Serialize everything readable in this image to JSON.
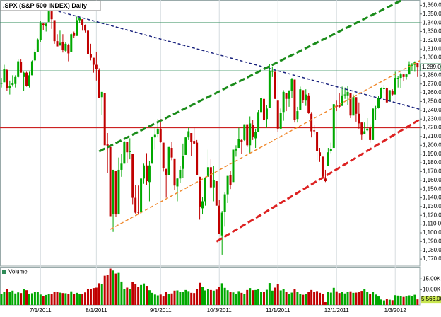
{
  "chart_data": {
    "type": "candlestick",
    "title": ".SPX (S&P 500 INDEX) Daily",
    "up_color": "#00a800",
    "down_color": "#c00000",
    "candles": [
      [
        1271,
        1277,
        1266,
        1271
      ],
      [
        1272,
        1292,
        1272,
        1287
      ],
      [
        1286,
        1287,
        1262,
        1265
      ],
      [
        1265,
        1274,
        1258,
        1268
      ],
      [
        1269,
        1280,
        1267,
        1271
      ],
      [
        1270,
        1280,
        1266,
        1278
      ],
      [
        1278,
        1298,
        1277,
        1296
      ],
      [
        1295,
        1298,
        1283,
        1283
      ],
      [
        1278,
        1284,
        1262,
        1283
      ],
      [
        1283,
        1284,
        1267,
        1268
      ],
      [
        1268,
        1284,
        1266,
        1280
      ],
      [
        1280,
        1297,
        1280,
        1296
      ],
      [
        1297,
        1310,
        1295,
        1307
      ],
      [
        1307,
        1322,
        1307,
        1321
      ],
      [
        1320,
        1342,
        1318,
        1340
      ],
      [
        1339,
        1340,
        1332,
        1337
      ],
      [
        1336,
        1340,
        1330,
        1339
      ],
      [
        1341,
        1357,
        1341,
        1353
      ],
      [
        1353,
        1353,
        1333,
        1344
      ],
      [
        1343,
        1343,
        1316,
        1319
      ],
      [
        1319,
        1327,
        1313,
        1313
      ],
      [
        1314,
        1331,
        1314,
        1317
      ],
      [
        1318,
        1327,
        1306,
        1309
      ],
      [
        1308,
        1318,
        1307,
        1316
      ],
      [
        1315,
        1316,
        1296,
        1305
      ],
      [
        1307,
        1328,
        1307,
        1327
      ],
      [
        1328,
        1330,
        1323,
        1325
      ],
      [
        1325,
        1347,
        1325,
        1343
      ],
      [
        1343,
        1347,
        1340,
        1346
      ],
      [
        1344,
        1344,
        1331,
        1337
      ],
      [
        1337,
        1338,
        1329,
        1331
      ],
      [
        1331,
        1331,
        1303,
        1304
      ],
      [
        1304,
        1316,
        1297,
        1300
      ],
      [
        1300,
        1300,
        1283,
        1292
      ],
      [
        1292,
        1307,
        1274,
        1287
      ],
      [
        1286,
        1288,
        1254,
        1254
      ],
      [
        1255,
        1261,
        1235,
        1261
      ],
      [
        1260,
        1260,
        1200,
        1200
      ],
      [
        1201,
        1214,
        1168,
        1199
      ],
      [
        1198,
        1198,
        1119,
        1119
      ],
      [
        1121,
        1172,
        1101,
        1172
      ],
      [
        1171,
        1171,
        1118,
        1121
      ],
      [
        1121,
        1186,
        1121,
        1172
      ],
      [
        1172,
        1190,
        1164,
        1179
      ],
      [
        1179,
        1205,
        1179,
        1204
      ],
      [
        1204,
        1204,
        1180,
        1192
      ],
      [
        1193,
        1208,
        1184,
        1193
      ],
      [
        1190,
        1190,
        1132,
        1140
      ],
      [
        1140,
        1155,
        1122,
        1123
      ],
      [
        1124,
        1154,
        1121,
        1123
      ],
      [
        1124,
        1162,
        1121,
        1162
      ],
      [
        1162,
        1179,
        1156,
        1177
      ],
      [
        1177,
        1191,
        1155,
        1159
      ],
      [
        1158,
        1182,
        1136,
        1177
      ],
      [
        1179,
        1210,
        1179,
        1210
      ],
      [
        1209,
        1220,
        1195,
        1212
      ],
      [
        1213,
        1230,
        1209,
        1219
      ],
      [
        1219,
        1230,
        1203,
        1204
      ],
      [
        1203,
        1203,
        1170,
        1174
      ],
      [
        1173,
        1173,
        1140,
        1166
      ],
      [
        1166,
        1198,
        1166,
        1198
      ],
      [
        1197,
        1204,
        1183,
        1186
      ],
      [
        1185,
        1185,
        1149,
        1154
      ],
      [
        1153,
        1163,
        1136,
        1162
      ],
      [
        1162,
        1176,
        1157,
        1172
      ],
      [
        1173,
        1202,
        1163,
        1188
      ],
      [
        1189,
        1209,
        1189,
        1209
      ],
      [
        1209,
        1220,
        1206,
        1216
      ],
      [
        1214,
        1214,
        1188,
        1204
      ],
      [
        1205,
        1220,
        1201,
        1202
      ],
      [
        1203,
        1206,
        1166,
        1166
      ],
      [
        1164,
        1164,
        1115,
        1130
      ],
      [
        1128,
        1141,
        1121,
        1136
      ],
      [
        1136,
        1164,
        1131,
        1163
      ],
      [
        1164,
        1195,
        1164,
        1175
      ],
      [
        1175,
        1184,
        1150,
        1152
      ],
      [
        1152,
        1176,
        1136,
        1160
      ],
      [
        1159,
        1159,
        1131,
        1131
      ],
      [
        1131,
        1138,
        1099,
        1099
      ],
      [
        1097,
        1125,
        1075,
        1123
      ],
      [
        1124,
        1146,
        1107,
        1144
      ],
      [
        1144,
        1165,
        1134,
        1165
      ],
      [
        1166,
        1171,
        1150,
        1155
      ],
      [
        1158,
        1195,
        1158,
        1195
      ],
      [
        1194,
        1200,
        1187,
        1196
      ],
      [
        1197,
        1220,
        1197,
        1207
      ],
      [
        1206,
        1207,
        1190,
        1204
      ],
      [
        1206,
        1224,
        1205,
        1224
      ],
      [
        1224,
        1224,
        1198,
        1200
      ],
      [
        1200,
        1233,
        1191,
        1225
      ],
      [
        1223,
        1229,
        1206,
        1210
      ],
      [
        1208,
        1219,
        1197,
        1215
      ],
      [
        1215,
        1240,
        1215,
        1238
      ],
      [
        1238,
        1256,
        1238,
        1254
      ],
      [
        1253,
        1254,
        1226,
        1229
      ],
      [
        1230,
        1246,
        1220,
        1242
      ],
      [
        1243,
        1293,
        1243,
        1285
      ],
      [
        1284,
        1290,
        1278,
        1285
      ],
      [
        1284,
        1284,
        1253,
        1253
      ],
      [
        1251,
        1251,
        1215,
        1219
      ],
      [
        1219,
        1242,
        1219,
        1237
      ],
      [
        1238,
        1263,
        1228,
        1261
      ],
      [
        1260,
        1260,
        1239,
        1253
      ],
      [
        1253,
        1263,
        1244,
        1262
      ],
      [
        1262,
        1277,
        1254,
        1276
      ],
      [
        1275,
        1275,
        1226,
        1229
      ],
      [
        1230,
        1244,
        1226,
        1239
      ],
      [
        1240,
        1267,
        1240,
        1264
      ],
      [
        1263,
        1263,
        1248,
        1252
      ],
      [
        1251,
        1264,
        1245,
        1258
      ],
      [
        1257,
        1260,
        1236,
        1237
      ],
      [
        1236,
        1238,
        1209,
        1216
      ],
      [
        1217,
        1223,
        1212,
        1216
      ],
      [
        1215,
        1215,
        1183,
        1193
      ],
      [
        1192,
        1197,
        1181,
        1188
      ],
      [
        1187,
        1187,
        1162,
        1162
      ],
      [
        1162,
        1172,
        1158,
        1159
      ],
      [
        1176,
        1197,
        1176,
        1192
      ],
      [
        1193,
        1203,
        1191,
        1196
      ],
      [
        1197,
        1247,
        1197,
        1247
      ],
      [
        1246,
        1251,
        1239,
        1244
      ],
      [
        1246,
        1260,
        1243,
        1244
      ],
      [
        1245,
        1267,
        1245,
        1257
      ],
      [
        1258,
        1266,
        1253,
        1258
      ],
      [
        1257,
        1268,
        1246,
        1261
      ],
      [
        1260,
        1260,
        1231,
        1234
      ],
      [
        1234,
        1258,
        1234,
        1255
      ],
      [
        1255,
        1255,
        1227,
        1236
      ],
      [
        1236,
        1249,
        1219,
        1225
      ],
      [
        1226,
        1226,
        1206,
        1212
      ],
      [
        1213,
        1226,
        1213,
        1216
      ],
      [
        1217,
        1231,
        1216,
        1219
      ],
      [
        1220,
        1224,
        1203,
        1206
      ],
      [
        1206,
        1242,
        1206,
        1242
      ],
      [
        1242,
        1245,
        1229,
        1243
      ],
      [
        1243,
        1256,
        1242,
        1254
      ],
      [
        1254,
        1266,
        1254,
        1265
      ],
      [
        1265,
        1269,
        1259,
        1265
      ],
      [
        1265,
        1266,
        1248,
        1249
      ],
      [
        1250,
        1263,
        1250,
        1263
      ],
      [
        1262,
        1264,
        1257,
        1258
      ],
      [
        1258,
        1284,
        1258,
        1277
      ],
      [
        1277,
        1279,
        1266,
        1277
      ],
      [
        1277,
        1283,
        1265,
        1281
      ],
      [
        1281,
        1281,
        1273,
        1278
      ],
      [
        1278,
        1282,
        1275,
        1281
      ],
      [
        1281,
        1296,
        1281,
        1292
      ],
      [
        1291,
        1294,
        1285,
        1292
      ],
      [
        1292,
        1296,
        1284,
        1295
      ],
      [
        1294,
        1294,
        1278,
        1289.09
      ]
    ],
    "close_label": "1,289.09",
    "xlim": [
      -0.5,
      149.8
    ],
    "xticks": [
      {
        "value": 14,
        "label": "7/1/2011"
      },
      {
        "value": 34,
        "label": "8/1/2011"
      },
      {
        "value": 57,
        "label": "9/1/2011"
      },
      {
        "value": 78,
        "label": "10/3/2011"
      },
      {
        "value": 99,
        "label": "11/1/2011"
      },
      {
        "value": 120,
        "label": "12/1/2011"
      },
      {
        "value": 141,
        "label": "1/3/2012"
      }
    ],
    "ylim": [
      1062,
      1366
    ],
    "yticks": [
      {
        "value": 1070,
        "label": "1,070.00"
      },
      {
        "value": 1080,
        "label": "1,080.00"
      },
      {
        "value": 1090,
        "label": "1,090.00"
      },
      {
        "value": 1100,
        "label": "1,100.00"
      },
      {
        "value": 1110,
        "label": "1,110.00"
      },
      {
        "value": 1120,
        "label": "1,120.00"
      },
      {
        "value": 1130,
        "label": "1,130.00"
      },
      {
        "value": 1140,
        "label": "1,140.00"
      },
      {
        "value": 1150,
        "label": "1,150.00"
      },
      {
        "value": 1160,
        "label": "1,160.00"
      },
      {
        "value": 1170,
        "label": "1,170.00"
      },
      {
        "value": 1180,
        "label": "1,180.00"
      },
      {
        "value": 1190,
        "label": "1,190.00"
      },
      {
        "value": 1200,
        "label": "1,200.00"
      },
      {
        "value": 1210,
        "label": "1,210.00"
      },
      {
        "value": 1220,
        "label": "1,220.00"
      },
      {
        "value": 1230,
        "label": "1,230.00"
      },
      {
        "value": 1240,
        "label": "1,240.00"
      },
      {
        "value": 1250,
        "label": "1,250.00"
      },
      {
        "value": 1260,
        "label": "1,260.00"
      },
      {
        "value": 1270,
        "label": "1,270.00"
      },
      {
        "value": 1280,
        "label": "1,280.00"
      },
      {
        "value": 1290,
        "label": "1,290.00"
      },
      {
        "value": 1300,
        "label": "1,300.00"
      },
      {
        "value": 1310,
        "label": "1,310.00"
      },
      {
        "value": 1320,
        "label": "1,320.00"
      },
      {
        "value": 1330,
        "label": "1,330.00"
      },
      {
        "value": 1340,
        "label": "1,340.00"
      },
      {
        "value": 1350,
        "label": "1,350.00"
      },
      {
        "value": 1360,
        "label": "1,360.00"
      }
    ],
    "levels": [
      {
        "value": 1340,
        "color": "#2e8b57"
      },
      {
        "value": 1285,
        "color": "#2e8b57"
      },
      {
        "value": 1220,
        "color": "#cc2222"
      }
    ],
    "trendlines": [
      {
        "from": [
          17,
          1356
        ],
        "to": [
          150,
          1241
        ],
        "color": "#1a237e",
        "width": 1.5,
        "dash": "4,3"
      },
      {
        "from": [
          35,
          1193
        ],
        "to": [
          146,
          1370
        ],
        "color": "#1a8c1a",
        "width": 3,
        "dash": "9,4"
      },
      {
        "from": [
          39,
          1104
        ],
        "to": [
          150,
          1297
        ],
        "color": "#f08a30",
        "width": 1.5,
        "dash": "5,3"
      },
      {
        "from": [
          77,
          1090
        ],
        "to": [
          150,
          1230
        ],
        "color": "#dd2222",
        "width": 3,
        "dash": "9,4"
      }
    ],
    "volume": {
      "label": "Volume",
      "values": [
        8200,
        9100,
        10400,
        9000,
        9600,
        8300,
        8800,
        8500,
        10200,
        9800,
        8100,
        8400,
        8900,
        9200,
        7800,
        7000,
        7600,
        8000,
        7900,
        8900,
        9100,
        8700,
        8500,
        8400,
        8100,
        9300,
        8200,
        8600,
        7900,
        8000,
        8800,
        10200,
        10400,
        10800,
        11000,
        13000,
        12800,
        16500,
        17000,
        19800,
        18900,
        17500,
        17800,
        13800,
        10500,
        11000,
        10200,
        13600,
        12700,
        11200,
        12200,
        12900,
        11800,
        9800,
        8600,
        7800,
        7400,
        7800,
        6900,
        9200,
        8100,
        8300,
        9600,
        9700,
        8900,
        9100,
        9900,
        9400,
        8600,
        8500,
        10200,
        13200,
        11400,
        9700,
        10300,
        9900,
        9600,
        10100,
        11300,
        13000,
        10900,
        9800,
        9200,
        8800,
        8100,
        9400,
        8600,
        8000,
        9900,
        10800,
        9800,
        9900,
        10300,
        9200,
        8900,
        10000,
        13100,
        9600,
        11000,
        12500,
        9700,
        10400,
        9200,
        8100,
        8700,
        10300,
        8900,
        8000,
        7700,
        8200,
        9200,
        9900,
        9100,
        9400,
        8600,
        7900,
        4300,
        8900,
        8700,
        10900,
        9300,
        8500,
        9000,
        8300,
        8900,
        9300,
        8600,
        8700,
        9200,
        9500,
        10200,
        9000,
        8200,
        8900,
        7800,
        6900,
        5500,
        5100,
        5600,
        5400,
        5200,
        7500,
        7300,
        7100,
        6700,
        6900,
        7400,
        7100,
        7700,
        5566
      ],
      "last_label": "5,566.00",
      "ylim": [
        3000,
        20300
      ],
      "yticks": [
        {
          "value": 15000,
          "label": "15.00K"
        },
        {
          "value": 10000,
          "label": "10.00K"
        }
      ]
    }
  }
}
